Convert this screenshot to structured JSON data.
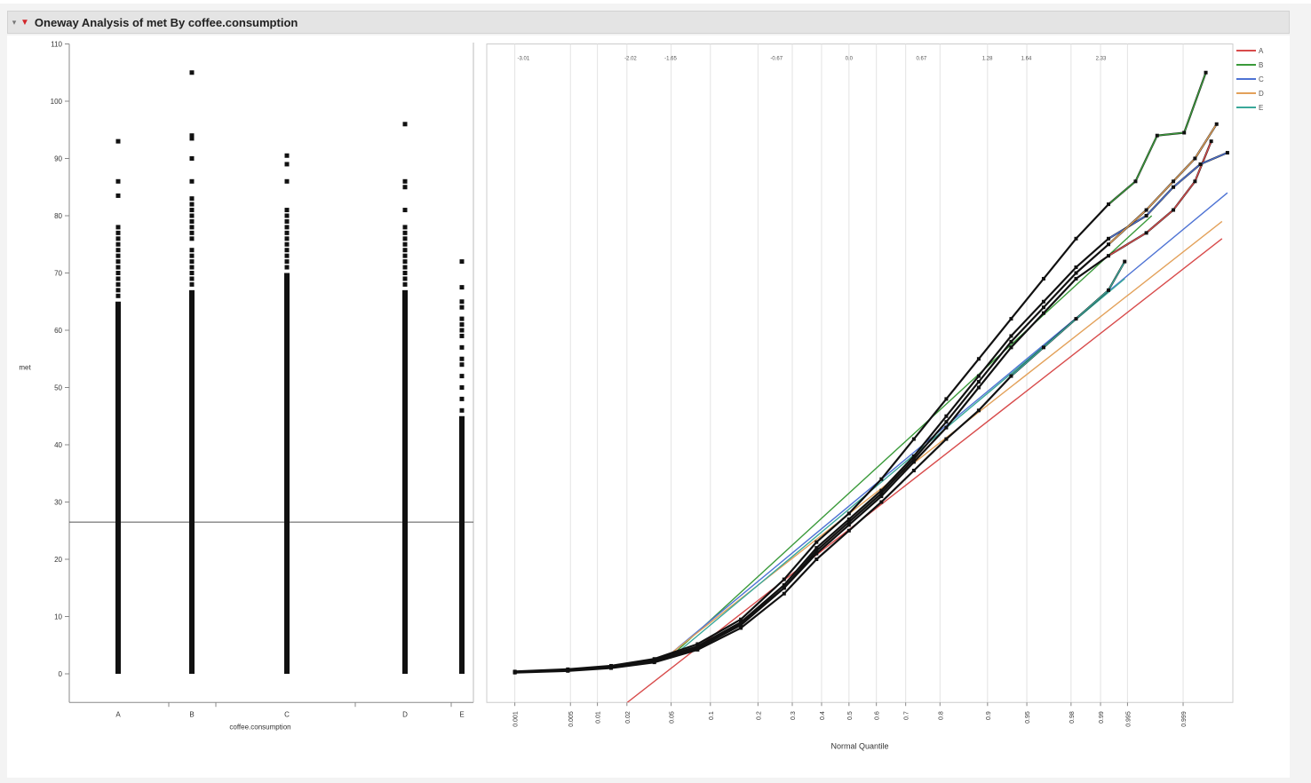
{
  "title": "Oneway Analysis of met By coffee.consumption",
  "icons": [
    "disclosure-triangle-icon",
    "red-triangle-menu-icon"
  ],
  "colors": {
    "background": "#ffffff",
    "points": "#111111",
    "mean_line": "#555555",
    "series": {
      "A": "#d84b4b",
      "B": "#3a9a3a",
      "C": "#4e73d4",
      "D": "#e3a15a",
      "E": "#3aa89a"
    }
  },
  "chart_data": [
    {
      "type": "scatter",
      "title": "",
      "xlabel": "coffee.consumption",
      "ylabel": "met",
      "categories": [
        "A",
        "B",
        "C",
        "D",
        "E"
      ],
      "ylim": [
        -5,
        110
      ],
      "yticks": [
        0,
        10,
        20,
        30,
        40,
        50,
        60,
        70,
        80,
        90,
        100,
        110
      ],
      "grand_mean": 26.5,
      "grid": false,
      "columns": [
        {
          "name": "A",
          "dense_range": [
            0,
            65
          ],
          "outliers": [
            66,
            67,
            68,
            69,
            70,
            71,
            72,
            73,
            74,
            75,
            76,
            77,
            78,
            83.5,
            86,
            93
          ]
        },
        {
          "name": "B",
          "dense_range": [
            0,
            67
          ],
          "outliers": [
            68,
            69,
            70,
            71,
            72,
            73,
            74,
            76,
            77,
            78,
            79,
            80,
            81,
            82,
            83,
            86,
            90,
            93.5,
            94,
            105
          ]
        },
        {
          "name": "C",
          "dense_range": [
            0,
            70
          ],
          "outliers": [
            71,
            72,
            73,
            74,
            75,
            76,
            77,
            78,
            79,
            80,
            81,
            86,
            89,
            90.5
          ]
        },
        {
          "name": "D",
          "dense_range": [
            0,
            67
          ],
          "outliers": [
            68,
            69,
            70,
            71,
            72,
            73,
            74,
            75,
            76,
            77,
            78,
            81,
            85,
            86,
            96
          ]
        },
        {
          "name": "E",
          "dense_range": [
            0,
            45
          ],
          "outliers": [
            46,
            48,
            50,
            52,
            54,
            55,
            57,
            59,
            60,
            61,
            62,
            64,
            65,
            67.5,
            72
          ]
        }
      ]
    },
    {
      "type": "line",
      "title": "",
      "xlabel": "Normal Quantile",
      "ylim": [
        -5,
        110
      ],
      "x_prob_ticks": [
        "0.001",
        "0.005",
        "0.01",
        "0.02",
        "0.05",
        "0.1",
        "0.2",
        "0.3",
        "0.4",
        "0.5",
        "0.6",
        "0.7",
        "0.8",
        "0.9",
        "0.95",
        "0.98",
        "0.99",
        "0.995",
        "0.999"
      ],
      "x_prob_values": [
        0.001,
        0.005,
        0.01,
        0.02,
        0.05,
        0.1,
        0.2,
        0.3,
        0.4,
        0.5,
        0.6,
        0.7,
        0.8,
        0.9,
        0.95,
        0.98,
        0.99,
        0.995,
        0.999
      ],
      "x_quantile_ticks": [
        "-3.01",
        "-2.02",
        "-1.65",
        "-0.67",
        "0.0",
        "0.67",
        "1.28",
        "1.64",
        "2.33"
      ],
      "x_quantile_values": [
        -3.01,
        -2.02,
        -1.65,
        -0.67,
        0.0,
        0.67,
        1.28,
        1.64,
        2.33
      ],
      "xlim": [
        -3.35,
        3.55
      ],
      "legend_position": "right",
      "series": [
        {
          "name": "A",
          "fit_line": [
            [
              -2.05,
              -5
            ],
            [
              3.45,
              76
            ]
          ],
          "points": [
            [
              -3.09,
              0.3
            ],
            [
              -2.6,
              0.6
            ],
            [
              -2.2,
              1.1
            ],
            [
              -1.8,
              2.2
            ],
            [
              -1.4,
              4.5
            ],
            [
              -1.0,
              8.5
            ],
            [
              -0.6,
              15
            ],
            [
              -0.3,
              21
            ],
            [
              0.0,
              26
            ],
            [
              0.3,
              31
            ],
            [
              0.6,
              37
            ],
            [
              0.9,
              43
            ],
            [
              1.2,
              50
            ],
            [
              1.5,
              57
            ],
            [
              1.8,
              63
            ],
            [
              2.1,
              69
            ],
            [
              2.4,
              73
            ],
            [
              2.75,
              77
            ],
            [
              3.0,
              81
            ],
            [
              3.2,
              86
            ],
            [
              3.35,
              93
            ]
          ]
        },
        {
          "name": "B",
          "fit_line": [
            [
              -1.62,
              3.5
            ],
            [
              2.8,
              80
            ]
          ],
          "points": [
            [
              -3.09,
              0.4
            ],
            [
              -2.6,
              0.8
            ],
            [
              -2.2,
              1.4
            ],
            [
              -1.8,
              2.6
            ],
            [
              -1.4,
              5.2
            ],
            [
              -1.0,
              9.5
            ],
            [
              -0.6,
              16.5
            ],
            [
              -0.3,
              23
            ],
            [
              0.0,
              28
            ],
            [
              0.3,
              34
            ],
            [
              0.6,
              41
            ],
            [
              0.9,
              48
            ],
            [
              1.2,
              55
            ],
            [
              1.5,
              62
            ],
            [
              1.8,
              69
            ],
            [
              2.1,
              76
            ],
            [
              2.4,
              82
            ],
            [
              2.65,
              86
            ],
            [
              2.85,
              94
            ],
            [
              3.1,
              94.5
            ],
            [
              3.3,
              105
            ]
          ]
        },
        {
          "name": "C",
          "fit_line": [
            [
              -1.65,
              3.5
            ],
            [
              3.5,
              84
            ]
          ],
          "points": [
            [
              -3.09,
              0.3
            ],
            [
              -2.6,
              0.7
            ],
            [
              -2.2,
              1.2
            ],
            [
              -1.8,
              2.4
            ],
            [
              -1.4,
              4.8
            ],
            [
              -1.0,
              9
            ],
            [
              -0.6,
              15.5
            ],
            [
              -0.3,
              22
            ],
            [
              0.0,
              27
            ],
            [
              0.3,
              32
            ],
            [
              0.6,
              38
            ],
            [
              0.9,
              45
            ],
            [
              1.2,
              52
            ],
            [
              1.5,
              59
            ],
            [
              1.8,
              65
            ],
            [
              2.1,
              71
            ],
            [
              2.4,
              76
            ],
            [
              2.75,
              80
            ],
            [
              3.0,
              85
            ],
            [
              3.25,
              89
            ],
            [
              3.5,
              91
            ]
          ]
        },
        {
          "name": "D",
          "fit_line": [
            [
              -1.65,
              3.5
            ],
            [
              3.45,
              79
            ]
          ],
          "points": [
            [
              -3.09,
              0.3
            ],
            [
              -2.6,
              0.6
            ],
            [
              -2.2,
              1.1
            ],
            [
              -1.8,
              2.3
            ],
            [
              -1.4,
              4.6
            ],
            [
              -1.0,
              8.8
            ],
            [
              -0.6,
              15
            ],
            [
              -0.3,
              21.5
            ],
            [
              0.0,
              26.5
            ],
            [
              0.3,
              31.5
            ],
            [
              0.6,
              37.5
            ],
            [
              0.9,
              44
            ],
            [
              1.2,
              51
            ],
            [
              1.5,
              58
            ],
            [
              1.8,
              64
            ],
            [
              2.1,
              70
            ],
            [
              2.4,
              75
            ],
            [
              2.75,
              81
            ],
            [
              3.0,
              86
            ],
            [
              3.2,
              90
            ],
            [
              3.4,
              96
            ]
          ]
        },
        {
          "name": "E",
          "fit_line": [
            [
              -1.6,
              3.5
            ],
            [
              2.55,
              69
            ]
          ],
          "points": [
            [
              -3.09,
              0.2
            ],
            [
              -2.6,
              0.5
            ],
            [
              -2.2,
              1.0
            ],
            [
              -1.8,
              2.0
            ],
            [
              -1.4,
              4.2
            ],
            [
              -1.0,
              8
            ],
            [
              -0.6,
              14
            ],
            [
              -0.3,
              20
            ],
            [
              0.0,
              25
            ],
            [
              0.3,
              30
            ],
            [
              0.6,
              35.5
            ],
            [
              0.9,
              41
            ],
            [
              1.2,
              46
            ],
            [
              1.5,
              52
            ],
            [
              1.8,
              57
            ],
            [
              2.1,
              62
            ],
            [
              2.4,
              67
            ],
            [
              2.55,
              72
            ]
          ]
        }
      ]
    }
  ]
}
